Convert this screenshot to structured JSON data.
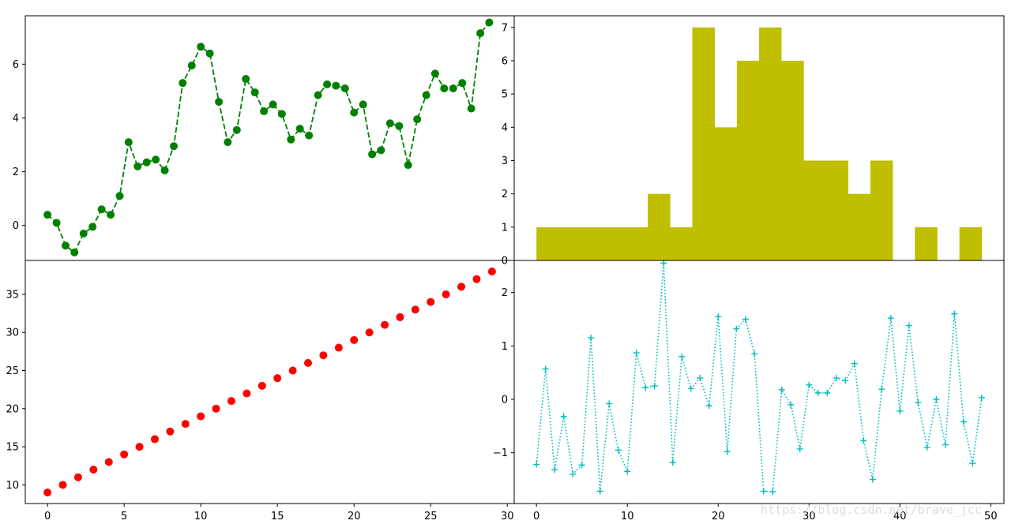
{
  "colors": {
    "line_green": "#008000",
    "hist_olive": "#bfbf00",
    "scatter_red": "#ff0000",
    "dotted_cyan": "#00bfbf",
    "axes": "#000000",
    "background": "#ffffff"
  },
  "watermark": "https://blog.csdn.net/brave_jcc",
  "chart_data": [
    {
      "type": "line",
      "panel": "top-left",
      "style": "green dashed line with circle markers",
      "x": [
        0.0,
        0.59,
        1.18,
        1.76,
        2.35,
        2.94,
        3.53,
        4.12,
        4.71,
        5.29,
        5.88,
        6.47,
        7.06,
        7.65,
        8.24,
        8.82,
        9.41,
        10.0,
        10.59,
        11.18,
        11.76,
        12.35,
        12.94,
        13.53,
        14.12,
        14.71,
        15.29,
        15.88,
        16.47,
        17.06,
        17.65,
        18.24,
        18.82,
        19.41,
        20.0,
        20.59,
        21.18,
        21.76,
        22.35,
        22.94,
        23.53,
        24.12,
        24.71,
        25.29,
        25.88,
        26.47,
        27.06,
        27.65,
        28.24,
        28.82
      ],
      "y": [
        0.4,
        0.1,
        -0.75,
        -1.0,
        -0.3,
        -0.05,
        0.6,
        0.4,
        1.1,
        3.1,
        2.2,
        2.35,
        2.45,
        2.05,
        2.95,
        5.3,
        5.95,
        6.65,
        6.4,
        4.6,
        3.1,
        3.55,
        5.45,
        4.95,
        4.25,
        4.5,
        4.15,
        3.2,
        3.6,
        3.35,
        4.85,
        5.25,
        5.2,
        5.1,
        4.2,
        4.5,
        2.65,
        2.8,
        3.8,
        3.7,
        2.25,
        3.95,
        4.85,
        5.65,
        5.1,
        5.1,
        5.3,
        4.35,
        7.15,
        7.55
      ],
      "xlim": [
        -1.45,
        30.45
      ],
      "ylim": [
        -1.3,
        7.8
      ],
      "yticks": [
        0,
        2,
        4,
        6
      ],
      "ytick_labels": [
        "0",
        "2",
        "4",
        "6"
      ]
    },
    {
      "type": "bar",
      "panel": "top-right",
      "style": "olive histogram, 20 bins",
      "bin_edges": [
        0,
        2.45,
        4.9,
        7.35,
        9.8,
        12.25,
        14.7,
        17.15,
        19.6,
        22.05,
        24.5,
        26.95,
        29.4,
        31.85,
        34.3,
        36.75,
        39.2,
        41.65,
        44.1,
        46.55,
        49.0
      ],
      "counts": [
        1,
        1,
        1,
        1,
        1,
        2,
        1,
        7,
        4,
        6,
        7,
        6,
        3,
        3,
        2,
        3,
        0,
        1,
        0,
        1
      ],
      "xlim": [
        -2.45,
        51.45
      ],
      "ylim": [
        0,
        7.35
      ],
      "yticks": [
        0,
        1,
        2,
        3,
        4,
        5,
        6,
        7
      ],
      "ytick_labels": [
        "0",
        "1",
        "2",
        "3",
        "4",
        "5",
        "6",
        "7"
      ]
    },
    {
      "type": "scatter",
      "panel": "bottom-left",
      "style": "red circles",
      "x": [
        0,
        1,
        2,
        3,
        4,
        5,
        6,
        7,
        8,
        9,
        10,
        11,
        12,
        13,
        14,
        15,
        16,
        17,
        18,
        19,
        20,
        21,
        22,
        23,
        24,
        25,
        26,
        27,
        28,
        29
      ],
      "y": [
        9,
        10,
        11,
        12,
        13,
        14,
        15,
        16,
        17,
        18,
        19,
        20,
        21,
        22,
        23,
        24,
        25,
        26,
        27,
        28,
        29,
        30,
        31,
        32,
        33,
        34,
        35,
        36,
        37,
        38
      ],
      "xlim": [
        -1.45,
        30.45
      ],
      "ylim": [
        7.55,
        39.45
      ],
      "xticks": [
        0,
        5,
        10,
        15,
        20,
        25,
        30
      ],
      "xtick_labels": [
        "0",
        "5",
        "10",
        "15",
        "20",
        "25",
        "30"
      ],
      "yticks": [
        10,
        15,
        20,
        25,
        30,
        35
      ],
      "ytick_labels": [
        "10",
        "15",
        "20",
        "25",
        "30",
        "35"
      ]
    },
    {
      "type": "line",
      "panel": "bottom-right",
      "style": "cyan dotted line with plus markers",
      "x": [
        0,
        1,
        2,
        3,
        4,
        5,
        6,
        7,
        8,
        9,
        10,
        11,
        12,
        13,
        14,
        15,
        16,
        17,
        18,
        19,
        20,
        21,
        22,
        23,
        24,
        25,
        26,
        27,
        28,
        29,
        30,
        31,
        32,
        33,
        34,
        35,
        36,
        37,
        38,
        39,
        40,
        41,
        42,
        43,
        44,
        45,
        46,
        47,
        48,
        49
      ],
      "y": [
        -1.22,
        0.57,
        -1.32,
        -0.32,
        -1.4,
        -1.23,
        1.15,
        -1.72,
        -0.08,
        -0.95,
        -1.35,
        0.87,
        0.22,
        0.25,
        2.55,
        -1.18,
        0.8,
        0.2,
        0.4,
        -0.12,
        1.55,
        -0.98,
        1.32,
        1.5,
        0.85,
        -1.72,
        -1.73,
        0.18,
        -0.1,
        -0.93,
        0.27,
        0.12,
        0.12,
        0.4,
        0.35,
        0.67,
        -0.77,
        -1.5,
        0.19,
        1.52,
        -0.22,
        1.38,
        -0.06,
        -0.9,
        0.0,
        -0.85,
        1.6,
        -0.42,
        -1.2,
        0.03
      ],
      "xlim": [
        -2.45,
        51.45
      ],
      "ylim": [
        -1.95,
        2.6
      ],
      "xticks": [
        0,
        10,
        20,
        30,
        40,
        50
      ],
      "xtick_labels": [
        "0",
        "10",
        "20",
        "30",
        "40",
        "50"
      ],
      "yticks": [
        -1,
        0,
        1,
        2
      ],
      "ytick_labels": [
        "−1",
        "0",
        "1",
        "2"
      ]
    }
  ]
}
